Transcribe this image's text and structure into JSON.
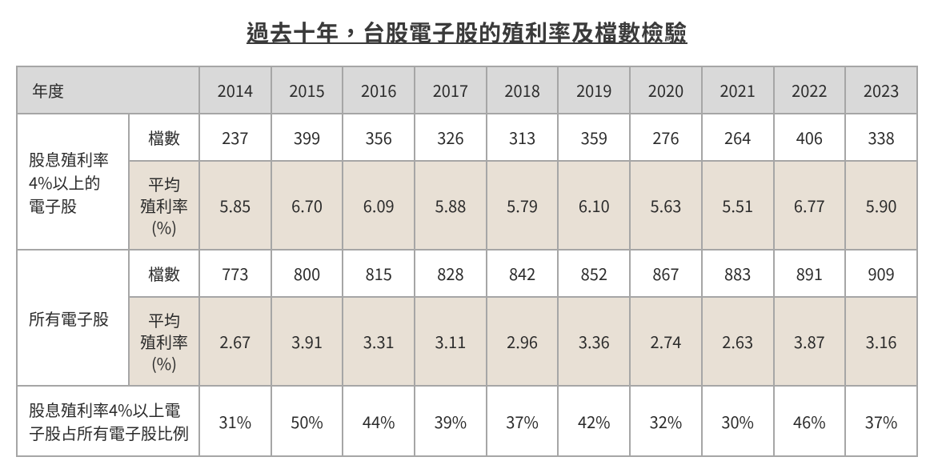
{
  "title": "過去十年，台股電子股的殖利率及檔數檢驗",
  "table": {
    "type": "table",
    "header_bg": "#d9d9d9",
    "tan_bg": "#e8e0d5",
    "border_color": "#a6a6a6",
    "year_label": "年度",
    "years": [
      "2014",
      "2015",
      "2016",
      "2017",
      "2018",
      "2019",
      "2020",
      "2021",
      "2022",
      "2023"
    ],
    "group1_label": "股息殖利率\n4%以上的\n電子股",
    "group2_label": "所有電子股",
    "sub_count": "檔數",
    "sub_yield": "平均\n殖利率\n(%)",
    "ratio_label": "股息殖利率4%以上電子股占所有電子股比例",
    "g1_count": [
      "237",
      "399",
      "356",
      "326",
      "313",
      "359",
      "276",
      "264",
      "406",
      "338"
    ],
    "g1_yield": [
      "5.85",
      "6.70",
      "6.09",
      "5.88",
      "5.79",
      "6.10",
      "5.63",
      "5.51",
      "6.77",
      "5.90"
    ],
    "g2_count": [
      "773",
      "800",
      "815",
      "828",
      "842",
      "852",
      "867",
      "883",
      "891",
      "909"
    ],
    "g2_yield": [
      "2.67",
      "3.91",
      "3.31",
      "3.11",
      "2.96",
      "3.36",
      "2.74",
      "2.63",
      "3.87",
      "3.16"
    ],
    "ratio": [
      "31%",
      "50%",
      "44%",
      "39%",
      "37%",
      "42%",
      "32%",
      "30%",
      "46%",
      "37%"
    ]
  }
}
